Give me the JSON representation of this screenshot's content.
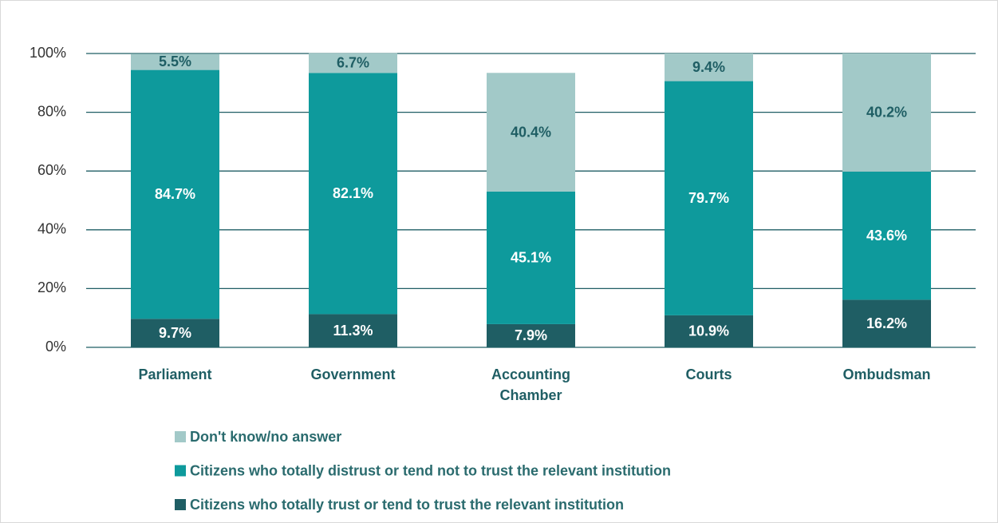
{
  "chart_data": {
    "type": "stacked_bar",
    "categories": [
      "Parliament",
      "Government",
      "Accounting Chamber",
      "Courts",
      "Ombudsman"
    ],
    "series": [
      {
        "name": "Citizens who totally trust or tend to trust the relevant institution",
        "color": "#1f5e64",
        "label_color": "#ffffff",
        "values": [
          9.7,
          11.3,
          7.9,
          10.9,
          16.2
        ],
        "value_labels": [
          "9.7%",
          "11.3%",
          "7.9%",
          "10.9%",
          "16.2%"
        ]
      },
      {
        "name": "Citizens who totally distrust or tend not to trust the relevant institution",
        "color": "#0e9a9c",
        "label_color": "#ffffff",
        "values": [
          84.7,
          82.1,
          45.1,
          79.7,
          43.6
        ],
        "value_labels": [
          "84.7%",
          "82.1%",
          "45.1%",
          "79.7%",
          "43.6%"
        ]
      },
      {
        "name": "Don't know/no answer",
        "color": "#a2c9c8",
        "label_color": "#1f5e64",
        "values": [
          5.5,
          6.7,
          40.4,
          9.4,
          40.2
        ],
        "value_labels": [
          "5.5%",
          "6.7%",
          "40.4%",
          "9.4%",
          "40.2%"
        ]
      }
    ],
    "ylim": [
      0,
      100
    ],
    "yticks": [
      {
        "value": 0,
        "label": "0%"
      },
      {
        "value": 20,
        "label": "20%"
      },
      {
        "value": 40,
        "label": "40%"
      },
      {
        "value": 60,
        "label": "60%"
      },
      {
        "value": 80,
        "label": "80%"
      },
      {
        "value": 100,
        "label": "100%"
      }
    ],
    "grid": true
  }
}
